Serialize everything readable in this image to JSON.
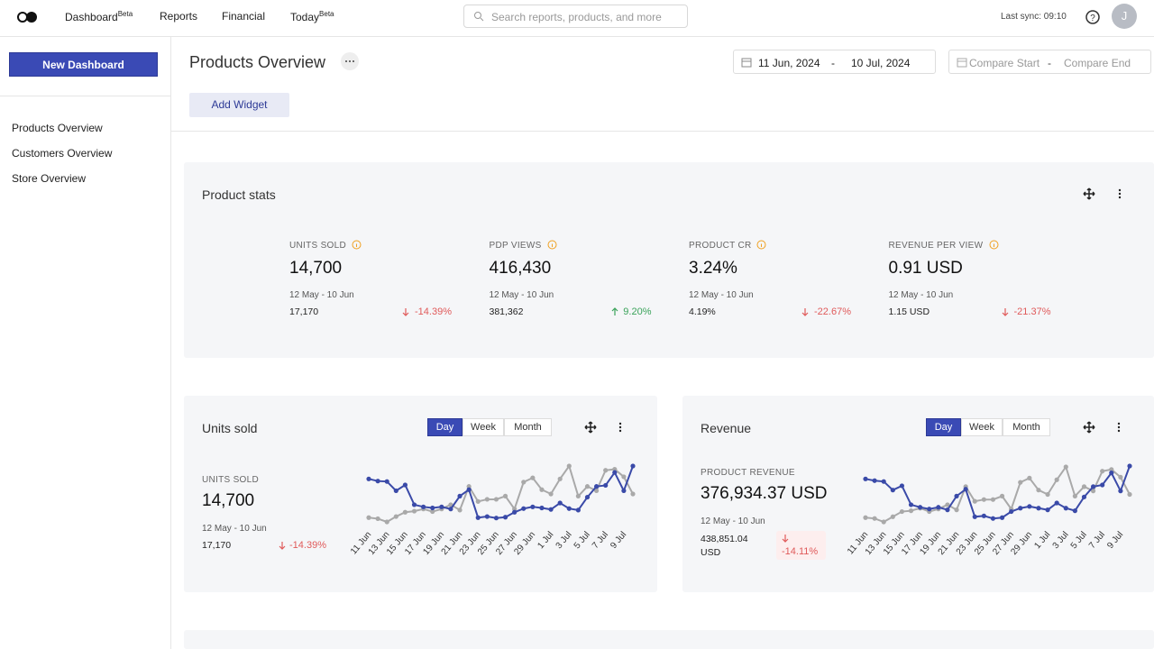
{
  "nav": {
    "items": [
      {
        "label": "Dashboard",
        "badge": "Beta"
      },
      {
        "label": "Reports"
      },
      {
        "label": "Financial"
      },
      {
        "label": "Today",
        "badge": "Beta"
      }
    ],
    "search": "Search reports, products, and more",
    "sync": "Last sync: 09:10",
    "avatar": "J"
  },
  "sidebar": {
    "button": "New Dashboard",
    "links": [
      "Products Overview",
      "Customers Overview",
      "Store Overview"
    ]
  },
  "header": {
    "title": "Products Overview",
    "date_start": "11 Jun, 2024",
    "date_separator": "-",
    "date_end": "10 Jul, 2024",
    "compare_start": "Compare Start",
    "compare_end": "Compare End",
    "add_widget": "Add Widget"
  },
  "stats": {
    "title": "Product stats",
    "items": [
      {
        "label": "UNITS SOLD",
        "value": "14,700",
        "period": "12 May - 10 Jun",
        "previous": "17,170",
        "change": "-14.39%",
        "direction": "down"
      },
      {
        "label": "PDP VIEWS",
        "value": "416,430",
        "period": "12 May - 10 Jun",
        "previous": "381,362",
        "change": "9.20%",
        "direction": "up"
      },
      {
        "label": "PRODUCT CR",
        "value": "3.24%",
        "period": "12 May - 10 Jun",
        "previous": "4.19%",
        "change": "-22.67%",
        "direction": "down"
      },
      {
        "label": "REVENUE PER VIEW",
        "value": "0.91 USD",
        "period": "12 May - 10 Jun",
        "previous": "1.15 USD",
        "change": "-21.37%",
        "direction": "down"
      }
    ]
  },
  "widgets": [
    {
      "title": "Units sold",
      "toggles": [
        "Day",
        "Week",
        "Month"
      ],
      "metric_label": "UNITS SOLD",
      "metric_value": "14,700",
      "period": "12 May - 10 Jun",
      "previous": "17,170",
      "change": "-14.39%",
      "chart_data": {
        "type": "line",
        "categories": [
          "11 Jun",
          null,
          "13 Jun",
          null,
          "15 Jun",
          null,
          "17 Jun",
          null,
          "19 Jun",
          null,
          "21 Jun",
          null,
          "23 Jun",
          null,
          "25 Jun",
          null,
          "27 Jun",
          null,
          "29 Jun",
          null,
          "1 Jul",
          null,
          "3 Jul",
          null,
          "5 Jul",
          null,
          "7 Jul",
          null,
          "9 Jul",
          null
        ],
        "series": [
          {
            "color": "#a9a9a9",
            "values": [
              420,
              415,
              400,
              425,
              445,
              450,
              460,
              448,
              460,
              480,
              455,
              565,
              495,
              505,
              505,
              520,
              460,
              585,
              605,
              550,
              530,
              600,
              660,
              520,
              565,
              545,
              640,
              645,
              610,
              530
            ]
          },
          {
            "color": "#3a4aa8",
            "values": [
              600,
              590,
              588,
              545,
              572,
              480,
              470,
              465,
              470,
              460,
              520,
              550,
              420,
              425,
              418,
              422,
              445,
              462,
              470,
              465,
              458,
              488,
              462,
              455,
              515,
              565,
              570,
              630,
              545,
              660
            ]
          }
        ]
      }
    },
    {
      "title": "Revenue",
      "toggles": [
        "Day",
        "Week",
        "Month"
      ],
      "metric_label": "PRODUCT REVENUE",
      "metric_value": "376,934.37 USD",
      "period": "12 May - 10 Jun",
      "previous": "438,851.04 USD",
      "change": "-14.11%",
      "chart_data": {
        "type": "line",
        "categories": [
          "11 Jun",
          null,
          "13 Jun",
          null,
          "15 Jun",
          null,
          "17 Jun",
          null,
          "19 Jun",
          null,
          "21 Jun",
          null,
          "23 Jun",
          null,
          "25 Jun",
          null,
          "27 Jun",
          null,
          "29 Jun",
          null,
          "1 Jul",
          null,
          "3 Jul",
          null,
          "5 Jul",
          null,
          "7 Jul",
          null,
          "9 Jul",
          null
        ],
        "series": [
          {
            "color": "#a9a9a9",
            "values": [
              10300,
              10200,
              9800,
              10400,
              11000,
              11100,
              11400,
              11000,
              11300,
              11800,
              11200,
              13900,
              12200,
              12400,
              12400,
              12800,
              11300,
              14400,
              14900,
              13500,
              13000,
              14700,
              16200,
              12800,
              13900,
              13400,
              15700,
              15900,
              15000,
              13000
            ]
          },
          {
            "color": "#3a4aa8",
            "values": [
              14800,
              14600,
              14500,
              13500,
              14000,
              11800,
              11500,
              11300,
              11500,
              11200,
              12800,
              13600,
              10400,
              10500,
              10200,
              10300,
              11000,
              11400,
              11600,
              11400,
              11200,
              12000,
              11400,
              11100,
              12700,
              13900,
              14100,
              15500,
              13400,
              16300
            ]
          }
        ]
      }
    }
  ]
}
